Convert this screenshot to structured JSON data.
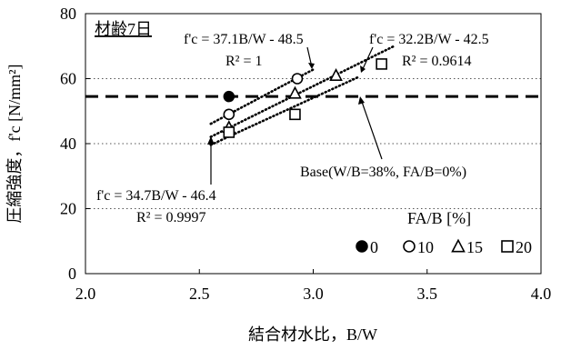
{
  "chart_data": {
    "type": "scatter",
    "panel_label": "材齢7日",
    "xlabel": "結合材水比，B/W",
    "ylabel": "圧縮強度，f'c [N/mm²]",
    "xlim": [
      2.0,
      4.0
    ],
    "ylim": [
      0,
      80
    ],
    "xticks": [
      2.0,
      2.5,
      3.0,
      3.5,
      4.0
    ],
    "xtick_labels": [
      "2.0",
      "2.5",
      "3.0",
      "3.5",
      "4.0"
    ],
    "yticks": [
      0,
      20,
      40,
      60,
      80
    ],
    "ytick_labels": [
      "0",
      "20",
      "40",
      "60",
      "80"
    ],
    "grid": "horizontal dotted",
    "legend": {
      "title": "FA/B [%]",
      "position": "bottom-right",
      "items": [
        {
          "marker": "filled-circle",
          "label": "0"
        },
        {
          "marker": "open-circle",
          "label": "10"
        },
        {
          "marker": "open-triangle",
          "label": "15"
        },
        {
          "marker": "open-square",
          "label": "20"
        }
      ]
    },
    "series": [
      {
        "name": "0",
        "marker": "filled-circle",
        "points": [
          {
            "x": 2.63,
            "y": 54.5
          }
        ]
      },
      {
        "name": "10",
        "marker": "open-circle",
        "points": [
          {
            "x": 2.63,
            "y": 49.0
          },
          {
            "x": 2.93,
            "y": 60.0
          }
        ]
      },
      {
        "name": "15",
        "marker": "open-triangle",
        "points": [
          {
            "x": 2.63,
            "y": 45.0
          },
          {
            "x": 2.92,
            "y": 55.5
          },
          {
            "x": 3.1,
            "y": 61.0
          }
        ]
      },
      {
        "name": "20",
        "marker": "open-square",
        "points": [
          {
            "x": 2.63,
            "y": 43.5
          },
          {
            "x": 2.92,
            "y": 49.0
          },
          {
            "x": 3.3,
            "y": 64.5
          }
        ]
      }
    ],
    "trendlines": [
      {
        "id": "fa10",
        "x_range": [
          2.55,
          3.0
        ],
        "slope": 37.1,
        "intercept": -48.5,
        "equation": "f'c = 37.1B/W - 48.5",
        "r2": "R² = 1"
      },
      {
        "id": "fa15",
        "x_range": [
          2.55,
          3.2
        ],
        "slope": 32.2,
        "intercept": -42.5,
        "equation": "f'c = 32.2B/W - 42.5",
        "r2": "R² = 0.9614"
      },
      {
        "id": "fa20",
        "x_range": [
          2.55,
          3.35
        ],
        "slope": 34.7,
        "intercept": -46.4,
        "equation": "f'c = 34.7B/W - 46.4",
        "r2": "R² = 0.9997"
      }
    ],
    "baseline": {
      "y": 54.5,
      "label": "Base(W/B=38%, FA/B=0%)",
      "style": "dashed"
    },
    "annotations": [
      {
        "text": "f'c = 37.1B/W - 48.5",
        "points_to": "fa10"
      },
      {
        "text": "f'c = 32.2B/W - 42.5",
        "points_to": "fa15"
      },
      {
        "text": "f'c = 34.7B/W - 46.4",
        "points_to": "fa20"
      },
      {
        "text": "Base(W/B=38%, FA/B=0%)",
        "points_to": "baseline"
      }
    ]
  }
}
